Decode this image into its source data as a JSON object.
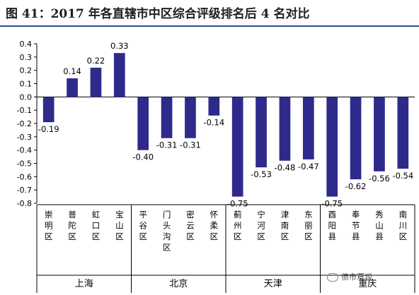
{
  "title": "图 41：2017 年各直辖市中区综合评级排名后 4 名对比",
  "watermark": "债市覃谈",
  "colors": {
    "bar": "#2e2a8c",
    "axis": "#000000",
    "rule": "#2f4f8f"
  },
  "chart_data": {
    "type": "bar",
    "ylim": [
      -0.8,
      0.4
    ],
    "yticks": [
      "0.4",
      "0.3",
      "0.2",
      "0.1",
      "0.0",
      "-0.1",
      "-0.2",
      "-0.3",
      "-0.4",
      "-0.5",
      "-0.6",
      "-0.7",
      "-0.8"
    ],
    "grid": false,
    "categories": [
      "崇明区",
      "普陀区",
      "虹口区",
      "宝山区",
      "平谷区",
      "门头沟区",
      "密云区",
      "怀柔区",
      "蓟州区",
      "宁河区",
      "津南区",
      "东丽区",
      "酉阳县",
      "奉节县",
      "秀山县",
      "南川区"
    ],
    "values": [
      -0.19,
      0.14,
      0.22,
      0.33,
      -0.4,
      -0.31,
      -0.31,
      -0.14,
      -0.75,
      -0.53,
      -0.48,
      -0.47,
      -0.75,
      -0.62,
      -0.56,
      -0.54
    ],
    "value_labels": [
      "-0.19",
      "0.14",
      "0.22",
      "0.33",
      "-0.40",
      "-0.31",
      "-0.31",
      "-0.14",
      "-0.75",
      "-0.53",
      "-0.48",
      "-0.47",
      "-0.75",
      "-0.62",
      "-0.56",
      "-0.54"
    ],
    "groups": [
      {
        "name": "上海",
        "count": 4
      },
      {
        "name": "北京",
        "count": 4
      },
      {
        "name": "天津",
        "count": 4
      },
      {
        "name": "重庆",
        "count": 4
      }
    ]
  }
}
